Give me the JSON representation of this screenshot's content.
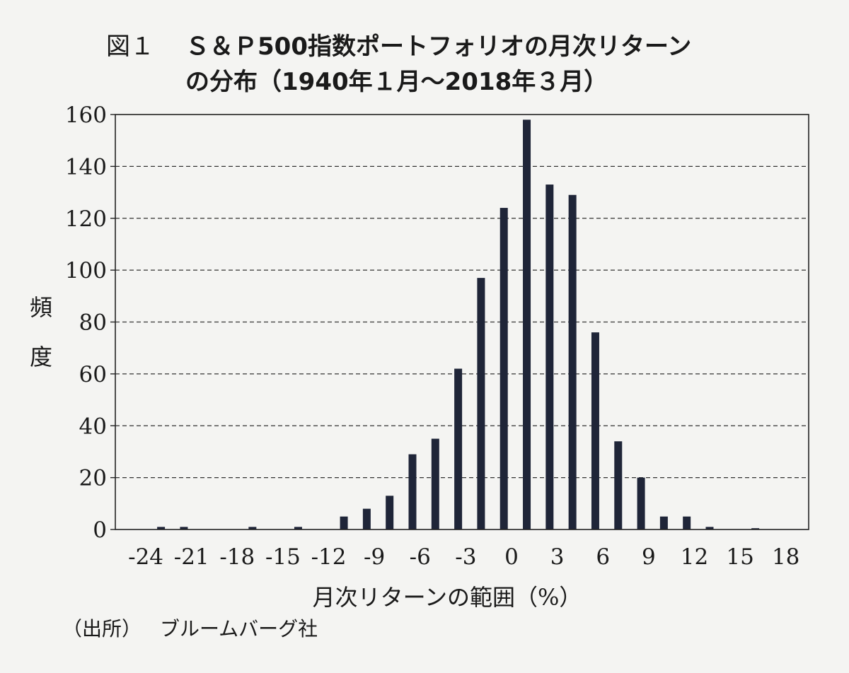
{
  "figure": {
    "label": "図１",
    "title_line1": "Ｓ＆Ｐ500指数ポートフォリオの月次リターン",
    "title_line2": "の分布（1940年１月～2018年３月）",
    "source_label": "（出所）",
    "source_value": "ブルームバーグ社"
  },
  "chart_data": {
    "type": "bar",
    "title": "Ｓ＆Ｐ500指数ポートフォリオの月次リターンの分布（1940年１月～2018年３月）",
    "xlabel": "月次リターンの範囲（%）",
    "ylabel_chars": [
      "頻",
      "度"
    ],
    "ylim": [
      0,
      160
    ],
    "xlim": [
      -26,
      19.5
    ],
    "yticks": [
      0,
      20,
      40,
      60,
      80,
      100,
      120,
      140,
      160
    ],
    "xticks": [
      -24,
      -21,
      -18,
      -15,
      -12,
      -9,
      -6,
      -3,
      0,
      3,
      6,
      9,
      12,
      15,
      18
    ],
    "grid": "horizontal-dashed",
    "bar_color": "#1f2538",
    "x": [
      -23,
      -21.5,
      -20,
      -18.5,
      -17,
      -15.5,
      -14,
      -12.5,
      -11,
      -9.5,
      -8,
      -6.5,
      -5,
      -3.5,
      -2,
      -0.5,
      1,
      2.5,
      4,
      5.5,
      7,
      8.5,
      10,
      11.5,
      13,
      14.5,
      16,
      17.5
    ],
    "values": [
      1,
      1,
      0,
      0,
      1,
      0,
      1,
      0,
      5,
      8,
      13,
      29,
      35,
      62,
      97,
      124,
      158,
      133,
      129,
      76,
      34,
      20,
      5,
      5,
      1,
      0,
      0.5,
      0
    ]
  }
}
